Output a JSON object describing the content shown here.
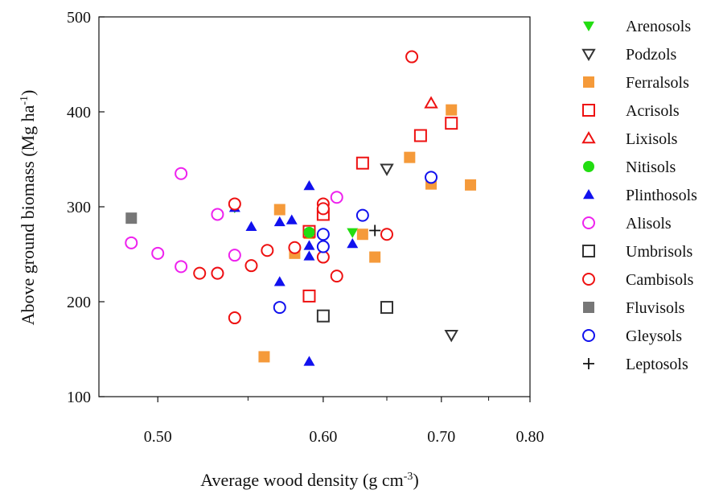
{
  "chart_data": {
    "type": "scatter",
    "x_axis_scale": "reciprocal",
    "xlabel": "Average wood density (g cm",
    "xlabel_sup": "-3",
    "xlabel_close": ")",
    "ylabel": "Above ground biomass (Mg ha",
    "ylabel_sup": "-1",
    "ylabel_close": ")",
    "x_ticks": [
      "0.50",
      "0.60",
      "0.70",
      "0.80"
    ],
    "y_ticks": [
      "100",
      "200",
      "300",
      "400",
      "500"
    ],
    "xlim": [
      0.472,
      0.8
    ],
    "ylim": [
      100,
      500
    ],
    "grid": false,
    "legend_position": "right",
    "series": [
      {
        "name": "Arenosols",
        "marker": "triangle-down-filled",
        "color": "#22dd11",
        "points": [
          [
            0.542,
            299
          ],
          [
            0.59,
            274
          ],
          [
            0.622,
            273
          ]
        ]
      },
      {
        "name": "Podzols",
        "marker": "triangle-down-open",
        "color": "#333333",
        "points": [
          [
            0.65,
            340
          ],
          [
            0.71,
            165
          ]
        ]
      },
      {
        "name": "Ferralsols",
        "marker": "square-filled",
        "color": "#f59a3a",
        "points": [
          [
            0.57,
            297
          ],
          [
            0.58,
            251
          ],
          [
            0.59,
            272
          ],
          [
            0.63,
            271
          ],
          [
            0.64,
            247
          ],
          [
            0.67,
            352
          ],
          [
            0.69,
            324
          ],
          [
            0.71,
            402
          ],
          [
            0.73,
            323
          ],
          [
            0.56,
            142
          ]
        ]
      },
      {
        "name": "Acrisols",
        "marker": "square-open",
        "color": "#ee1111",
        "points": [
          [
            0.59,
            206
          ],
          [
            0.59,
            274
          ],
          [
            0.6,
            292
          ],
          [
            0.63,
            346
          ],
          [
            0.68,
            375
          ],
          [
            0.71,
            388
          ]
        ]
      },
      {
        "name": "Lixisols",
        "marker": "triangle-up-open",
        "color": "#ee1111",
        "points": [
          [
            0.69,
            409
          ]
        ]
      },
      {
        "name": "Nitisols",
        "marker": "circle-filled",
        "color": "#22dd11",
        "points": [
          [
            0.59,
            273
          ]
        ]
      },
      {
        "name": "Plinthosols",
        "marker": "triangle-up-filled",
        "color": "#1111ee",
        "points": [
          [
            0.542,
            299
          ],
          [
            0.552,
            279
          ],
          [
            0.57,
            284
          ],
          [
            0.57,
            221
          ],
          [
            0.578,
            286
          ],
          [
            0.59,
            322
          ],
          [
            0.59,
            259
          ],
          [
            0.59,
            248
          ],
          [
            0.59,
            137
          ],
          [
            0.622,
            261
          ]
        ]
      },
      {
        "name": "Alisols",
        "marker": "circle-open",
        "color": "#ee22ee",
        "points": [
          [
            0.487,
            262
          ],
          [
            0.5,
            251
          ],
          [
            0.512,
            237
          ],
          [
            0.512,
            335
          ],
          [
            0.532,
            292
          ],
          [
            0.532,
            230
          ],
          [
            0.542,
            249
          ],
          [
            0.61,
            310
          ]
        ]
      },
      {
        "name": "Umbrisols",
        "marker": "square-open",
        "color": "#333333",
        "points": [
          [
            0.6,
            185
          ],
          [
            0.65,
            194
          ]
        ]
      },
      {
        "name": "Cambisols",
        "marker": "circle-open",
        "color": "#ee1111",
        "points": [
          [
            0.522,
            230
          ],
          [
            0.532,
            230
          ],
          [
            0.542,
            303
          ],
          [
            0.542,
            183
          ],
          [
            0.552,
            238
          ],
          [
            0.562,
            254
          ],
          [
            0.58,
            257
          ],
          [
            0.6,
            303
          ],
          [
            0.6,
            298
          ],
          [
            0.6,
            247
          ],
          [
            0.61,
            227
          ],
          [
            0.65,
            271
          ],
          [
            0.672,
            458
          ]
        ]
      },
      {
        "name": "Fluvisols",
        "marker": "square-filled",
        "color": "#777777",
        "points": [
          [
            0.487,
            288
          ]
        ]
      },
      {
        "name": "Gleysols",
        "marker": "circle-open",
        "color": "#1111ee",
        "points": [
          [
            0.57,
            194
          ],
          [
            0.6,
            271
          ],
          [
            0.6,
            258
          ],
          [
            0.63,
            291
          ],
          [
            0.69,
            331
          ]
        ]
      },
      {
        "name": "Leptosols",
        "marker": "plus",
        "color": "#111111",
        "points": [
          [
            0.64,
            275
          ]
        ]
      }
    ]
  }
}
